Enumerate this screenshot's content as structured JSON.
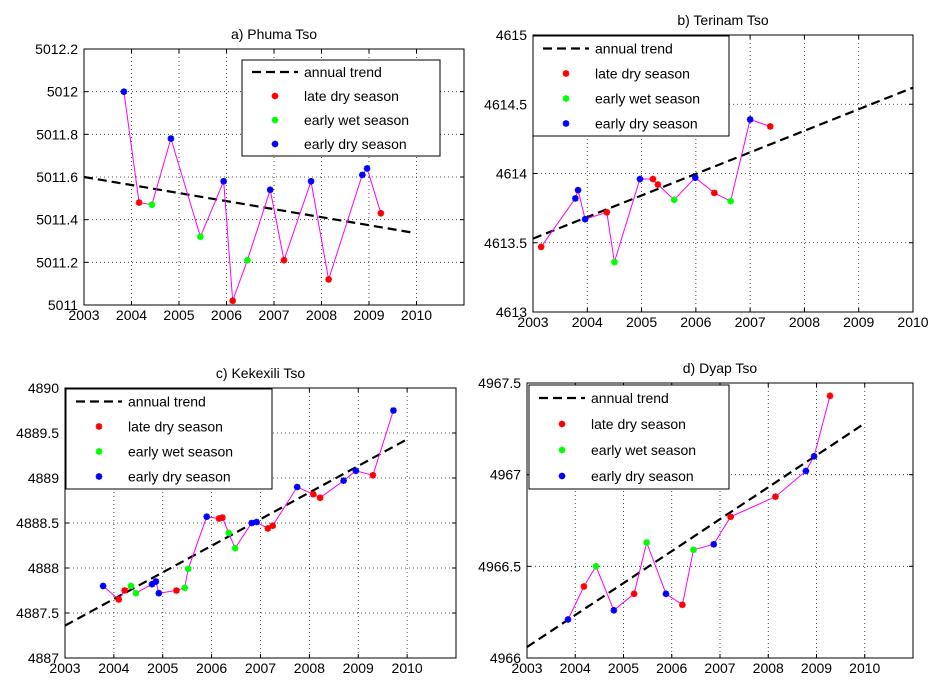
{
  "chart_data": [
    {
      "type": "scatter",
      "title": "a) Phuma Tso",
      "xlabel": "",
      "ylabel": "",
      "xlim": [
        2003,
        2011
      ],
      "ylim": [
        5011,
        5012.2
      ],
      "xticks": [
        2003,
        2004,
        2005,
        2006,
        2007,
        2008,
        2009,
        2010
      ],
      "yticks": [
        5011,
        5011.2,
        5011.4,
        5011.6,
        5011.8,
        5012,
        5012.2
      ],
      "grid": true,
      "legend_position": "top-right",
      "legend": [
        "annual trend",
        "late dry season",
        "early wet season",
        "early dry season"
      ],
      "trend": {
        "name": "annual trend",
        "color": "#000000",
        "x": [
          2003,
          2009.9
        ],
        "y": [
          5011.6,
          5011.34
        ]
      },
      "line": {
        "color": "#ff00ff",
        "x": [
          2003.84,
          2004.16,
          2004.43,
          2004.83,
          2005.45,
          2005.94,
          2006.13,
          2006.44,
          2006.92,
          2007.21,
          2007.78,
          2008.15,
          2008.86,
          2008.96,
          2009.25
        ],
        "y": [
          5012.0,
          5011.48,
          5011.47,
          5011.78,
          5011.32,
          5011.58,
          5011.02,
          5011.21,
          5011.54,
          5011.21,
          5011.58,
          5011.12,
          5011.61,
          5011.64,
          5011.43
        ]
      },
      "series": [
        {
          "name": "late dry season",
          "color": "#ff0000",
          "x": [
            2004.16,
            2006.13,
            2007.21,
            2008.15,
            2009.25
          ],
          "y": [
            5011.48,
            5011.02,
            5011.21,
            5011.12,
            5011.43
          ]
        },
        {
          "name": "early wet season",
          "color": "#00ff00",
          "x": [
            2004.43,
            2005.45,
            2006.44
          ],
          "y": [
            5011.47,
            5011.32,
            5011.21
          ]
        },
        {
          "name": "early dry season",
          "color": "#0000ff",
          "x": [
            2003.84,
            2004.83,
            2005.94,
            2006.92,
            2007.78,
            2008.86,
            2008.96
          ],
          "y": [
            5012.0,
            5011.78,
            5011.58,
            5011.54,
            5011.58,
            5011.61,
            5011.64
          ]
        }
      ]
    },
    {
      "type": "scatter",
      "title": "b) Terinam Tso",
      "xlabel": "",
      "ylabel": "",
      "xlim": [
        2003,
        2010
      ],
      "ylim": [
        4613,
        4615
      ],
      "xticks": [
        2003,
        2004,
        2005,
        2006,
        2007,
        2008,
        2009,
        2010
      ],
      "yticks": [
        4613,
        4613.5,
        4614,
        4614.5,
        4615
      ],
      "grid": true,
      "legend_position": "top-left",
      "legend": [
        "annual trend",
        "late dry season",
        "early wet season",
        "early dry season"
      ],
      "trend": {
        "name": "annual trend",
        "color": "#000000",
        "x": [
          2003,
          2010
        ],
        "y": [
          4613.53,
          4614.62
        ]
      },
      "line": {
        "color": "#ff00ff",
        "x": [
          2003.15,
          2003.78,
          2003.83,
          2003.96,
          2004.36,
          2004.5,
          2004.97,
          2005.21,
          2005.3,
          2005.6,
          2005.99,
          2006.34,
          2006.64,
          2007.0,
          2007.37
        ],
        "y": [
          4613.47,
          4613.82,
          4613.88,
          4613.67,
          4613.72,
          4613.36,
          4613.96,
          4613.96,
          4613.92,
          4613.81,
          4613.97,
          4613.86,
          4613.8,
          4614.39,
          4614.34
        ]
      },
      "series": [
        {
          "name": "late dry season",
          "color": "#ff0000",
          "x": [
            2003.15,
            2004.36,
            2005.21,
            2005.3,
            2006.34,
            2007.37
          ],
          "y": [
            4613.47,
            4613.72,
            4613.96,
            4613.92,
            4613.86,
            4614.34
          ]
        },
        {
          "name": "early wet season",
          "color": "#00ff00",
          "x": [
            2004.5,
            2005.6,
            2006.64
          ],
          "y": [
            4613.36,
            4613.81,
            4613.8
          ]
        },
        {
          "name": "early dry season",
          "color": "#0000ff",
          "x": [
            2003.78,
            2003.83,
            2003.96,
            2004.97,
            2005.99,
            2007.0
          ],
          "y": [
            4613.82,
            4613.88,
            4613.67,
            4613.96,
            4613.97,
            4614.39
          ]
        }
      ]
    },
    {
      "type": "scatter",
      "title": "c) Kekexili Tso",
      "xlabel": "",
      "ylabel": "",
      "xlim": [
        2003,
        2011
      ],
      "ylim": [
        4887,
        4890
      ],
      "xticks": [
        2003,
        2004,
        2005,
        2006,
        2007,
        2008,
        2009,
        2010
      ],
      "yticks": [
        4887,
        4887.5,
        4888,
        4888.5,
        4889,
        4889.5,
        4890
      ],
      "grid": true,
      "legend_position": "top-left",
      "legend": [
        "annual trend",
        "late dry season",
        "early wet season",
        "early dry season"
      ],
      "trend": {
        "name": "annual trend",
        "color": "#000000",
        "x": [
          2003,
          2010
        ],
        "y": [
          4887.36,
          4889.43
        ]
      },
      "line": {
        "color": "#ff00ff",
        "x": [
          2003.78,
          2004.1,
          2004.22,
          2004.35,
          2004.45,
          2004.78,
          2004.86,
          2004.92,
          2005.28,
          2005.45,
          2005.52,
          2005.9,
          2006.15,
          2006.22,
          2006.35,
          2006.48,
          2006.82,
          2006.92,
          2007.15,
          2007.25,
          2007.75,
          2008.08,
          2008.22,
          2008.7,
          2008.95,
          2009.3,
          2009.72
        ],
        "y": [
          4887.8,
          4887.65,
          4887.75,
          4887.8,
          4887.72,
          4887.82,
          4887.85,
          4887.72,
          4887.75,
          4887.78,
          4887.99,
          4888.57,
          4888.55,
          4888.56,
          4888.39,
          4888.22,
          4888.5,
          4888.51,
          4888.44,
          4888.47,
          4888.9,
          4888.82,
          4888.78,
          4888.97,
          4889.08,
          4889.03,
          4889.75
        ]
      },
      "series": [
        {
          "name": "late dry season",
          "color": "#ff0000",
          "x": [
            2004.1,
            2004.22,
            2005.28,
            2006.15,
            2006.22,
            2007.15,
            2007.25,
            2008.08,
            2008.22,
            2009.3
          ],
          "y": [
            4887.65,
            4887.75,
            4887.75,
            4888.55,
            4888.56,
            4888.44,
            4888.47,
            4888.82,
            4888.78,
            4889.03
          ]
        },
        {
          "name": "early wet season",
          "color": "#00ff00",
          "x": [
            2004.35,
            2004.45,
            2005.45,
            2005.52,
            2006.35,
            2006.48
          ],
          "y": [
            4887.8,
            4887.72,
            4887.78,
            4887.99,
            4888.39,
            4888.22
          ]
        },
        {
          "name": "early dry season",
          "color": "#0000ff",
          "x": [
            2003.78,
            2004.78,
            2004.86,
            2004.92,
            2005.9,
            2006.82,
            2006.92,
            2007.75,
            2008.7,
            2008.95,
            2009.72
          ],
          "y": [
            4887.8,
            4887.82,
            4887.85,
            4887.72,
            4888.57,
            4888.5,
            4888.51,
            4888.9,
            4888.97,
            4889.08,
            4889.75
          ]
        }
      ]
    },
    {
      "type": "scatter",
      "title": "d) Dyap Tso",
      "xlabel": "",
      "ylabel": "",
      "xlim": [
        2003,
        2011
      ],
      "ylim": [
        4966,
        4967.5
      ],
      "xticks": [
        2003,
        2004,
        2005,
        2006,
        2007,
        2008,
        2009,
        2010
      ],
      "yticks": [
        4966,
        4966.5,
        4967,
        4967.5
      ],
      "grid": true,
      "legend_position": "top-left",
      "legend": [
        "annual trend",
        "late dry season",
        "early wet season",
        "early dry season"
      ],
      "trend": {
        "name": "annual trend",
        "color": "#000000",
        "x": [
          2003,
          2010
        ],
        "y": [
          4966.06,
          4967.28
        ]
      },
      "line": {
        "color": "#ff00ff",
        "x": [
          2003.85,
          2004.18,
          2004.43,
          2004.8,
          2005.22,
          2005.48,
          2005.88,
          2006.22,
          2006.45,
          2006.87,
          2007.22,
          2008.15,
          2008.78,
          2008.95,
          2009.28
        ],
        "y": [
          4966.21,
          4966.39,
          4966.5,
          4966.26,
          4966.35,
          4966.63,
          4966.35,
          4966.29,
          4966.59,
          4966.62,
          4966.77,
          4966.88,
          4967.02,
          4967.1,
          4967.43
        ]
      },
      "series": [
        {
          "name": "late dry season",
          "color": "#ff0000",
          "x": [
            2004.18,
            2005.22,
            2006.22,
            2007.22,
            2008.15,
            2009.28
          ],
          "y": [
            4966.39,
            4966.35,
            4966.29,
            4966.77,
            4966.88,
            4967.43
          ]
        },
        {
          "name": "early wet season",
          "color": "#00ff00",
          "x": [
            2004.43,
            2005.48,
            2006.45
          ],
          "y": [
            4966.5,
            4966.63,
            4966.59
          ]
        },
        {
          "name": "early dry season",
          "color": "#0000ff",
          "x": [
            2003.85,
            2004.8,
            2005.88,
            2006.87,
            2008.78,
            2008.95
          ],
          "y": [
            4966.21,
            4966.26,
            4966.35,
            4966.62,
            4967.02,
            4967.1
          ]
        }
      ]
    }
  ]
}
